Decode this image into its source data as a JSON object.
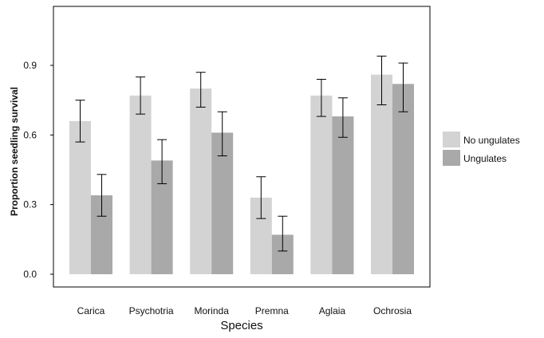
{
  "chart_data": {
    "type": "bar",
    "title": "",
    "xlabel": "Species",
    "ylabel": "Proportion seedling survival",
    "categories": [
      "Carica",
      "Psychotria",
      "Morinda",
      "Premna",
      "Aglaia",
      "Ochrosia"
    ],
    "series": [
      {
        "name": "No ungulates",
        "color": "#d3d3d3",
        "values": [
          0.66,
          0.77,
          0.8,
          0.33,
          0.77,
          0.86
        ],
        "err_low": [
          0.57,
          0.69,
          0.72,
          0.24,
          0.68,
          0.73
        ],
        "err_high": [
          0.75,
          0.85,
          0.87,
          0.42,
          0.84,
          0.94
        ]
      },
      {
        "name": "Ungulates",
        "color": "#a9a9a9",
        "values": [
          0.34,
          0.49,
          0.61,
          0.17,
          0.68,
          0.82
        ],
        "err_low": [
          0.25,
          0.39,
          0.51,
          0.1,
          0.59,
          0.7
        ],
        "err_high": [
          0.43,
          0.58,
          0.7,
          0.25,
          0.76,
          0.91
        ]
      }
    ],
    "yticks": [
      "0.0",
      "0.3",
      "0.6",
      "0.9"
    ],
    "ytick_values": [
      0.0,
      0.3,
      0.6,
      0.9
    ],
    "ylim": [
      -0.05,
      1.16
    ],
    "grid": false,
    "legend_position": "right"
  }
}
